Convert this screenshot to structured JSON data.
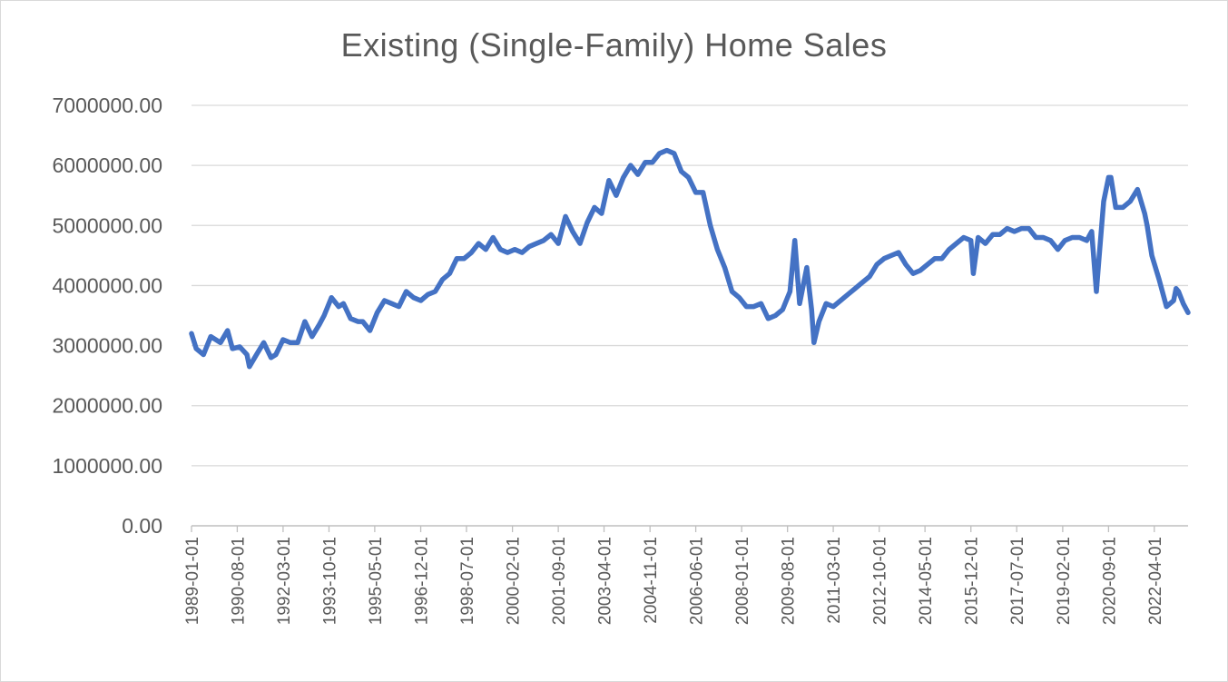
{
  "chart_data": {
    "type": "line",
    "title": "Existing (Single-Family) Home Sales",
    "xlabel": "",
    "ylabel": "",
    "ylim": [
      0,
      7000000
    ],
    "yticks": [
      "0.00",
      "1000000.00",
      "2000000.00",
      "3000000.00",
      "4000000.00",
      "5000000.00",
      "6000000.00",
      "7000000.00"
    ],
    "xlim": [
      "1989-01-01",
      "2023-06-01"
    ],
    "xticks": [
      "1989-01-01",
      "1990-08-01",
      "1992-03-01",
      "1993-10-01",
      "1995-05-01",
      "1996-12-01",
      "1998-07-01",
      "2000-02-01",
      "2001-09-01",
      "2003-04-01",
      "2004-11-01",
      "2006-06-01",
      "2008-01-01",
      "2009-08-01",
      "2011-03-01",
      "2012-10-01",
      "2014-05-01",
      "2015-12-01",
      "2017-07-01",
      "2019-02-01",
      "2020-09-01",
      "2022-04-01"
    ],
    "grid": true,
    "legend": "none",
    "line_color": "#4472c4",
    "series": [
      {
        "x": [
          "1989-01-01",
          "1989-03-01",
          "1989-06-01",
          "1989-09-01",
          "1990-01-01",
          "1990-04-01",
          "1990-06-01",
          "1990-09-01",
          "1990-12-01",
          "1991-01-01",
          "1991-04-01",
          "1991-07-01",
          "1991-10-01",
          "1991-12-01",
          "1992-03-01",
          "1992-06-01",
          "1992-09-01",
          "1992-12-01",
          "1993-03-01",
          "1993-06-01",
          "1993-08-01",
          "1993-11-01",
          "1994-02-01",
          "1994-04-01",
          "1994-07-01",
          "1994-10-01",
          "1994-12-01",
          "1995-03-01",
          "1995-06-01",
          "1995-09-01",
          "1995-12-01",
          "1996-03-01",
          "1996-06-01",
          "1996-09-01",
          "1996-12-01",
          "1997-03-01",
          "1997-06-01",
          "1997-09-01",
          "1997-12-01",
          "1998-03-01",
          "1998-06-01",
          "1998-09-01",
          "1998-12-01",
          "1999-03-01",
          "1999-06-01",
          "1999-09-01",
          "1999-12-01",
          "2000-03-01",
          "2000-06-01",
          "2000-09-01",
          "2000-12-01",
          "2001-03-01",
          "2001-06-01",
          "2001-09-01",
          "2001-12-01",
          "2002-03-01",
          "2002-06-01",
          "2002-09-01",
          "2002-12-01",
          "2003-03-01",
          "2003-06-01",
          "2003-09-01",
          "2003-12-01",
          "2004-03-01",
          "2004-06-01",
          "2004-09-01",
          "2004-12-01",
          "2005-03-01",
          "2005-06-01",
          "2005-09-01",
          "2005-12-01",
          "2006-03-01",
          "2006-06-01",
          "2006-09-01",
          "2006-12-01",
          "2007-03-01",
          "2007-06-01",
          "2007-09-01",
          "2007-12-01",
          "2008-03-01",
          "2008-06-01",
          "2008-09-01",
          "2008-12-01",
          "2009-03-01",
          "2009-06-01",
          "2009-09-01",
          "2009-11-01",
          "2010-01-01",
          "2010-04-01",
          "2010-06-01",
          "2010-07-01",
          "2010-09-01",
          "2010-12-01",
          "2011-03-01",
          "2011-06-01",
          "2011-09-01",
          "2011-12-01",
          "2012-03-01",
          "2012-06-01",
          "2012-09-01",
          "2012-12-01",
          "2013-03-01",
          "2013-06-01",
          "2013-09-01",
          "2013-12-01",
          "2014-03-01",
          "2014-06-01",
          "2014-09-01",
          "2014-12-01",
          "2015-03-01",
          "2015-06-01",
          "2015-09-01",
          "2015-12-01",
          "2016-01-01",
          "2016-03-01",
          "2016-06-01",
          "2016-09-01",
          "2016-12-01",
          "2017-03-01",
          "2017-06-01",
          "2017-09-01",
          "2017-12-01",
          "2018-03-01",
          "2018-06-01",
          "2018-09-01",
          "2018-12-01",
          "2019-03-01",
          "2019-06-01",
          "2019-09-01",
          "2019-12-01",
          "2020-02-01",
          "2020-04-01",
          "2020-05-01",
          "2020-07-01",
          "2020-09-01",
          "2020-10-01",
          "2020-12-01",
          "2021-03-01",
          "2021-06-01",
          "2021-09-01",
          "2021-12-01",
          "2022-01-01",
          "2022-03-01",
          "2022-06-01",
          "2022-09-01",
          "2022-12-01",
          "2023-01-01",
          "2023-02-01",
          "2023-04-01",
          "2023-06-01"
        ],
        "y": [
          3200000,
          2950000,
          2850000,
          3150000,
          3050000,
          3250000,
          2950000,
          2980000,
          2850000,
          2650000,
          2850000,
          3050000,
          2800000,
          2850000,
          3100000,
          3050000,
          3050000,
          3400000,
          3150000,
          3350000,
          3500000,
          3800000,
          3650000,
          3700000,
          3450000,
          3400000,
          3400000,
          3250000,
          3550000,
          3750000,
          3700000,
          3650000,
          3900000,
          3800000,
          3750000,
          3850000,
          3900000,
          4100000,
          4200000,
          4450000,
          4450000,
          4550000,
          4700000,
          4600000,
          4800000,
          4600000,
          4550000,
          4600000,
          4550000,
          4650000,
          4700000,
          4750000,
          4850000,
          4700000,
          5150000,
          4900000,
          4700000,
          5050000,
          5300000,
          5200000,
          5750000,
          5500000,
          5800000,
          6000000,
          5850000,
          6050000,
          6050000,
          6200000,
          6250000,
          6200000,
          5900000,
          5800000,
          5550000,
          5550000,
          5000000,
          4600000,
          4300000,
          3900000,
          3800000,
          3650000,
          3650000,
          3700000,
          3450000,
          3500000,
          3600000,
          3900000,
          4750000,
          3700000,
          4300000,
          3600000,
          3050000,
          3400000,
          3700000,
          3650000,
          3750000,
          3850000,
          3950000,
          4050000,
          4150000,
          4350000,
          4450000,
          4500000,
          4550000,
          4350000,
          4200000,
          4250000,
          4350000,
          4450000,
          4450000,
          4600000,
          4700000,
          4800000,
          4750000,
          4200000,
          4800000,
          4700000,
          4850000,
          4850000,
          4950000,
          4900000,
          4950000,
          4950000,
          4800000,
          4800000,
          4750000,
          4600000,
          4750000,
          4800000,
          4800000,
          4750000,
          4900000,
          3900000,
          4400000,
          5400000,
          5800000,
          5800000,
          5300000,
          5300000,
          5400000,
          5600000,
          5200000,
          5000000,
          4500000,
          4100000,
          3650000,
          3750000,
          3950000,
          3900000,
          3700000,
          3550000
        ]
      }
    ]
  }
}
